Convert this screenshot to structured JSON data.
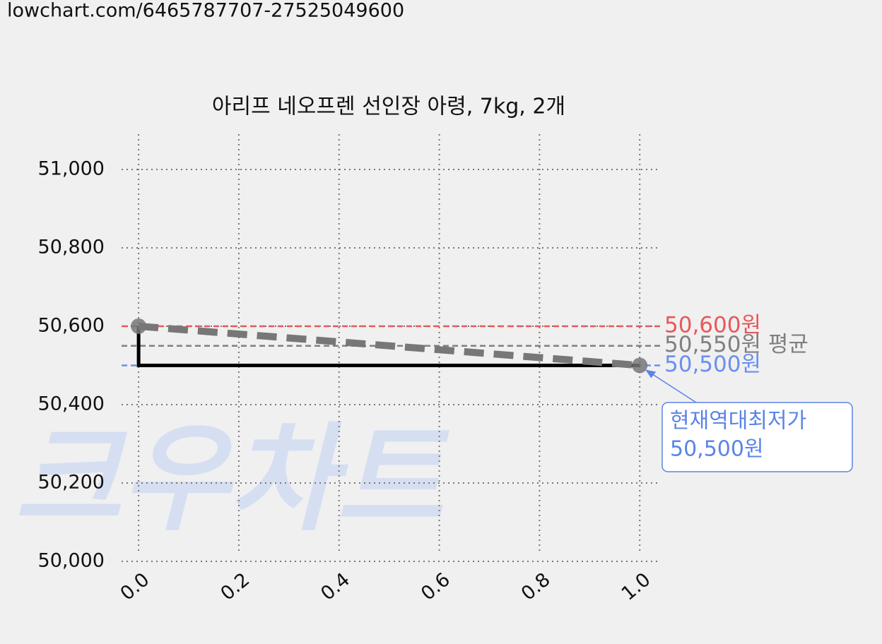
{
  "url": "lowchart.com/6465787707-27525049600",
  "watermark": "크우차트",
  "chart_data": {
    "type": "line",
    "title": "아리프 네오프렌 선인장 아령, 7kg, 2개",
    "series": [
      {
        "color": "#000000",
        "x": [
          0,
          0,
          1
        ],
        "values": [
          50600,
          50500,
          50500
        ],
        "style": "solid"
      },
      {
        "color": "#777777",
        "x": [
          0,
          1
        ],
        "values": [
          50600,
          50500
        ],
        "style": "dashed",
        "markers": true
      }
    ],
    "reference_lines": [
      {
        "value": 50600,
        "label": "50,600원",
        "color": "#e8585a"
      },
      {
        "value": 50550,
        "label": "50,550원 평균",
        "color": "#808080"
      },
      {
        "value": 50500,
        "label": "50,500원",
        "color": "#6b8ff0"
      }
    ],
    "annotation": {
      "lines": [
        "현재역대최저가",
        "50,500원"
      ],
      "x": 1,
      "y": 50500,
      "color": "#5b84e6"
    },
    "xlim": [
      -0.034,
      1.042
    ],
    "ylim": [
      50000,
      51090
    ],
    "xticks": [
      {
        "value": 0,
        "label": "0.0"
      },
      {
        "value": 0.2,
        "label": "0.2"
      },
      {
        "value": 0.4,
        "label": "0.4"
      },
      {
        "value": 0.6,
        "label": "0.6"
      },
      {
        "value": 0.8,
        "label": "0.8"
      },
      {
        "value": 1,
        "label": "1.0"
      }
    ],
    "yticks": [
      {
        "value": 50000,
        "label": "50,000"
      },
      {
        "value": 50200,
        "label": "50,200"
      },
      {
        "value": 50400,
        "label": "50,400"
      },
      {
        "value": 50600,
        "label": "50,600"
      },
      {
        "value": 50800,
        "label": "50,800"
      },
      {
        "value": 51000,
        "label": "51,000"
      }
    ],
    "grid": true
  }
}
